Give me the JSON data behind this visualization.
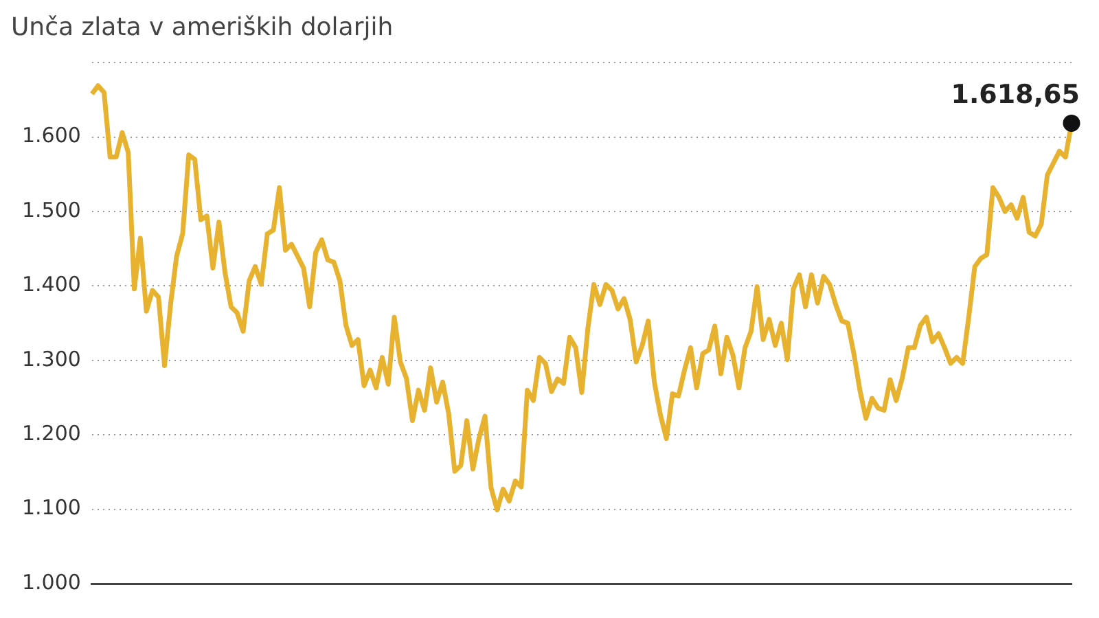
{
  "chart_data": {
    "type": "line",
    "title": "Unča zlata v ameriških dolarjih",
    "categories": [
      null,
      null,
      null,
      null,
      null,
      null,
      null,
      null,
      null,
      null,
      null,
      null,
      null,
      null,
      null,
      null,
      null,
      null,
      null,
      null,
      null,
      null,
      null,
      null,
      null,
      null,
      null,
      null,
      null,
      null,
      null,
      null,
      null,
      null,
      null,
      null,
      null,
      null,
      null,
      null,
      null,
      null,
      null,
      null,
      null,
      null,
      null,
      null,
      null,
      null,
      null,
      null,
      null,
      null,
      null,
      null,
      null,
      null,
      null,
      null,
      null,
      null,
      null,
      null,
      null,
      null,
      null,
      null,
      null,
      null,
      null,
      null,
      null,
      null,
      null,
      null,
      null,
      null,
      null,
      null,
      null,
      null,
      null,
      null,
      null,
      null,
      null,
      null,
      null,
      null,
      null,
      null,
      null,
      null,
      null,
      null,
      null,
      null,
      null,
      null,
      null,
      null,
      null,
      null,
      null,
      null,
      null,
      null,
      null,
      null,
      null,
      null,
      null,
      null,
      null,
      null,
      null,
      null,
      null,
      null,
      null,
      null,
      null,
      null,
      null,
      null,
      null,
      null,
      null,
      null,
      null,
      null,
      null,
      null,
      null,
      null,
      null,
      null,
      null,
      null,
      null,
      null,
      null,
      null,
      null,
      null,
      null,
      null,
      null,
      null,
      null,
      null,
      null,
      null,
      null,
      null,
      null,
      null,
      null,
      null,
      null,
      null,
      null
    ],
    "series": [
      {
        "color": "#e8b231",
        "values": [
          1658,
          1669,
          1660,
          1573,
          1573,
          1606,
          1579,
          1396,
          1464,
          1366,
          1394,
          1385,
          1293,
          1375,
          1440,
          1470,
          1576,
          1570,
          1489,
          1494,
          1424,
          1486,
          1418,
          1372,
          1364,
          1339,
          1407,
          1426,
          1402,
          1470,
          1475,
          1532,
          1448,
          1456,
          1440,
          1424,
          1372,
          1445,
          1462,
          1435,
          1432,
          1407,
          1347,
          1320,
          1328,
          1266,
          1287,
          1263,
          1304,
          1268,
          1358,
          1298,
          1276,
          1219,
          1260,
          1233,
          1290,
          1244,
          1271,
          1228,
          1151,
          1159,
          1219,
          1154,
          1195,
          1225,
          1129,
          1099,
          1127,
          1111,
          1138,
          1130,
          1260,
          1246,
          1304,
          1296,
          1258,
          1275,
          1269,
          1331,
          1317,
          1257,
          1342,
          1402,
          1375,
          1402,
          1394,
          1369,
          1383,
          1355,
          1298,
          1320,
          1353,
          1271,
          1227,
          1195,
          1255,
          1252,
          1287,
          1317,
          1263,
          1309,
          1314,
          1346,
          1282,
          1331,
          1307,
          1263,
          1317,
          1339,
          1399,
          1328,
          1355,
          1320,
          1350,
          1301,
          1396,
          1415,
          1372,
          1415,
          1377,
          1413,
          1402,
          1375,
          1353,
          1350,
          1309,
          1260,
          1222,
          1249,
          1236,
          1233,
          1274,
          1246,
          1276,
          1317,
          1317,
          1347,
          1358,
          1325,
          1336,
          1317,
          1296,
          1304,
          1296,
          1358,
          1426,
          1437,
          1442,
          1532,
          1519,
          1500,
          1509,
          1491,
          1519,
          1472,
          1467,
          1483,
          1549,
          1565,
          1581,
          1573,
          1618.65
        ]
      }
    ],
    "ylim": [
      1000,
      1700
    ],
    "yticks": [
      {
        "value": 1000,
        "label": "1.000"
      },
      {
        "value": 1100,
        "label": "1.100"
      },
      {
        "value": 1200,
        "label": "1.200"
      },
      {
        "value": 1300,
        "label": "1.300"
      },
      {
        "value": 1400,
        "label": "1.400"
      },
      {
        "value": 1500,
        "label": "1.500"
      },
      {
        "value": 1600,
        "label": "1.600"
      },
      {
        "value": 1700,
        "label": null
      }
    ],
    "grid": "y",
    "legend": false,
    "tick_labels": "y",
    "marker": "none",
    "line_style": "solid",
    "annotations": [
      "1.618,65"
    ]
  }
}
